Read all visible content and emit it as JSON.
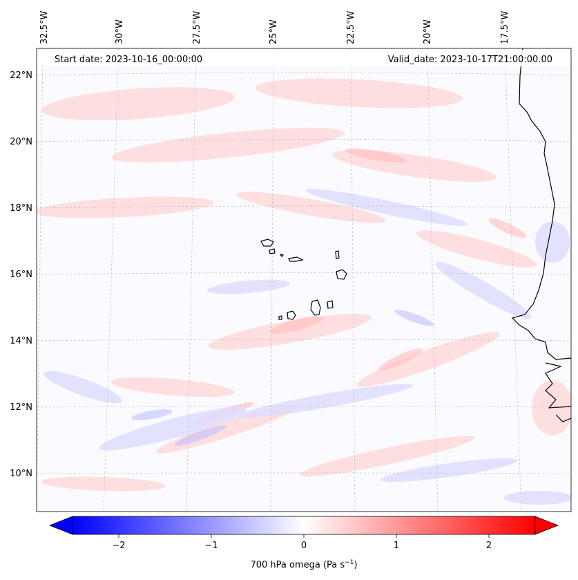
{
  "map": {
    "start_label": "Start date: 2023-10-16_00:00:00",
    "valid_label": "Valid_date: 2023-10-17T21:00:00.00",
    "lon_ticks": [
      "32.5°W",
      "30°W",
      "27.5°W",
      "25°W",
      "22.5°W",
      "20°W",
      "17.5°W"
    ],
    "lat_ticks": [
      "22°N",
      "20°N",
      "18°N",
      "16°N",
      "14°N",
      "12°N",
      "10°N"
    ],
    "field_name": "700 hPa omega",
    "land_outline_color": "#000000",
    "grid_color": "#bbbbbb"
  },
  "colorbar": {
    "label_main": "700 hPa omega (Pa s",
    "label_exp": "−1",
    "label_close": ")",
    "ticks": [
      "−2",
      "−1",
      "0",
      "1",
      "2"
    ],
    "tick_values": [
      -2,
      -1,
      0,
      1,
      2
    ],
    "vmin": -2.5,
    "vmax": 2.5,
    "color_low": "#0000ff",
    "color_mid": "#ffffff",
    "color_high": "#ff0000"
  }
}
